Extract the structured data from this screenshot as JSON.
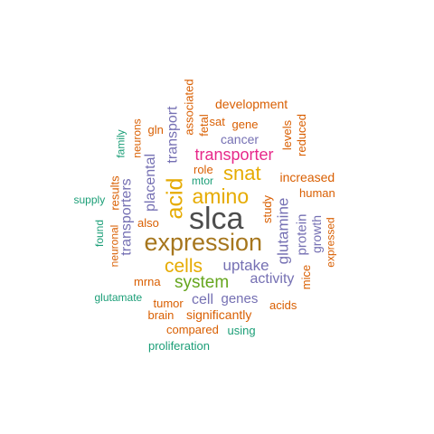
{
  "palette": {
    "gray": "#4d4d4d",
    "brown": "#a6761d",
    "gold": "#e6ab02",
    "orange": "#d95f02",
    "purple": "#7570b3",
    "teal": "#1b9e77",
    "green": "#66a61e",
    "magenta": "#e7298a"
  },
  "words": [
    {
      "text": "slca",
      "color": "#4d4d4d"
    },
    {
      "text": "expression",
      "color": "#a6761d"
    },
    {
      "text": "amino",
      "color": "#e6ab02"
    },
    {
      "text": "acid",
      "color": "#e6ab02"
    },
    {
      "text": "snat",
      "color": "#e6ab02"
    },
    {
      "text": "cells",
      "color": "#e6ab02"
    },
    {
      "text": "system",
      "color": "#66a61e"
    },
    {
      "text": "transporter",
      "color": "#e7298a"
    },
    {
      "text": "uptake",
      "color": "#7570b3"
    },
    {
      "text": "glutamine",
      "color": "#7570b3"
    },
    {
      "text": "transport",
      "color": "#7570b3"
    },
    {
      "text": "placental",
      "color": "#7570b3"
    },
    {
      "text": "transporters",
      "color": "#7570b3"
    },
    {
      "text": "activity",
      "color": "#7570b3"
    },
    {
      "text": "genes",
      "color": "#7570b3"
    },
    {
      "text": "cell",
      "color": "#7570b3"
    },
    {
      "text": "cancer",
      "color": "#7570b3"
    },
    {
      "text": "growth",
      "color": "#7570b3"
    },
    {
      "text": "protein",
      "color": "#7570b3"
    },
    {
      "text": "development",
      "color": "#d95f02"
    },
    {
      "text": "associated",
      "color": "#d95f02"
    },
    {
      "text": "fetal",
      "color": "#d95f02"
    },
    {
      "text": "sat",
      "color": "#d95f02"
    },
    {
      "text": "gene",
      "color": "#d95f02"
    },
    {
      "text": "levels",
      "color": "#d95f02"
    },
    {
      "text": "reduced",
      "color": "#d95f02"
    },
    {
      "text": "gln",
      "color": "#d95f02"
    },
    {
      "text": "neurons",
      "color": "#d95f02"
    },
    {
      "text": "role",
      "color": "#d95f02"
    },
    {
      "text": "increased",
      "color": "#d95f02"
    },
    {
      "text": "human",
      "color": "#d95f02"
    },
    {
      "text": "study",
      "color": "#d95f02"
    },
    {
      "text": "results",
      "color": "#d95f02"
    },
    {
      "text": "also",
      "color": "#d95f02"
    },
    {
      "text": "neuronal",
      "color": "#d95f02"
    },
    {
      "text": "mrna",
      "color": "#d95f02"
    },
    {
      "text": "tumor",
      "color": "#d95f02"
    },
    {
      "text": "brain",
      "color": "#d95f02"
    },
    {
      "text": "significantly",
      "color": "#d95f02"
    },
    {
      "text": "compared",
      "color": "#d95f02"
    },
    {
      "text": "acids",
      "color": "#d95f02"
    },
    {
      "text": "mice",
      "color": "#d95f02"
    },
    {
      "text": "expressed",
      "color": "#d95f02"
    },
    {
      "text": "family",
      "color": "#1b9e77"
    },
    {
      "text": "mtor",
      "color": "#1b9e77"
    },
    {
      "text": "supply",
      "color": "#1b9e77"
    },
    {
      "text": "found",
      "color": "#1b9e77"
    },
    {
      "text": "glutamate",
      "color": "#1b9e77"
    },
    {
      "text": "using",
      "color": "#1b9e77"
    },
    {
      "text": "proliferation",
      "color": "#1b9e77"
    }
  ]
}
